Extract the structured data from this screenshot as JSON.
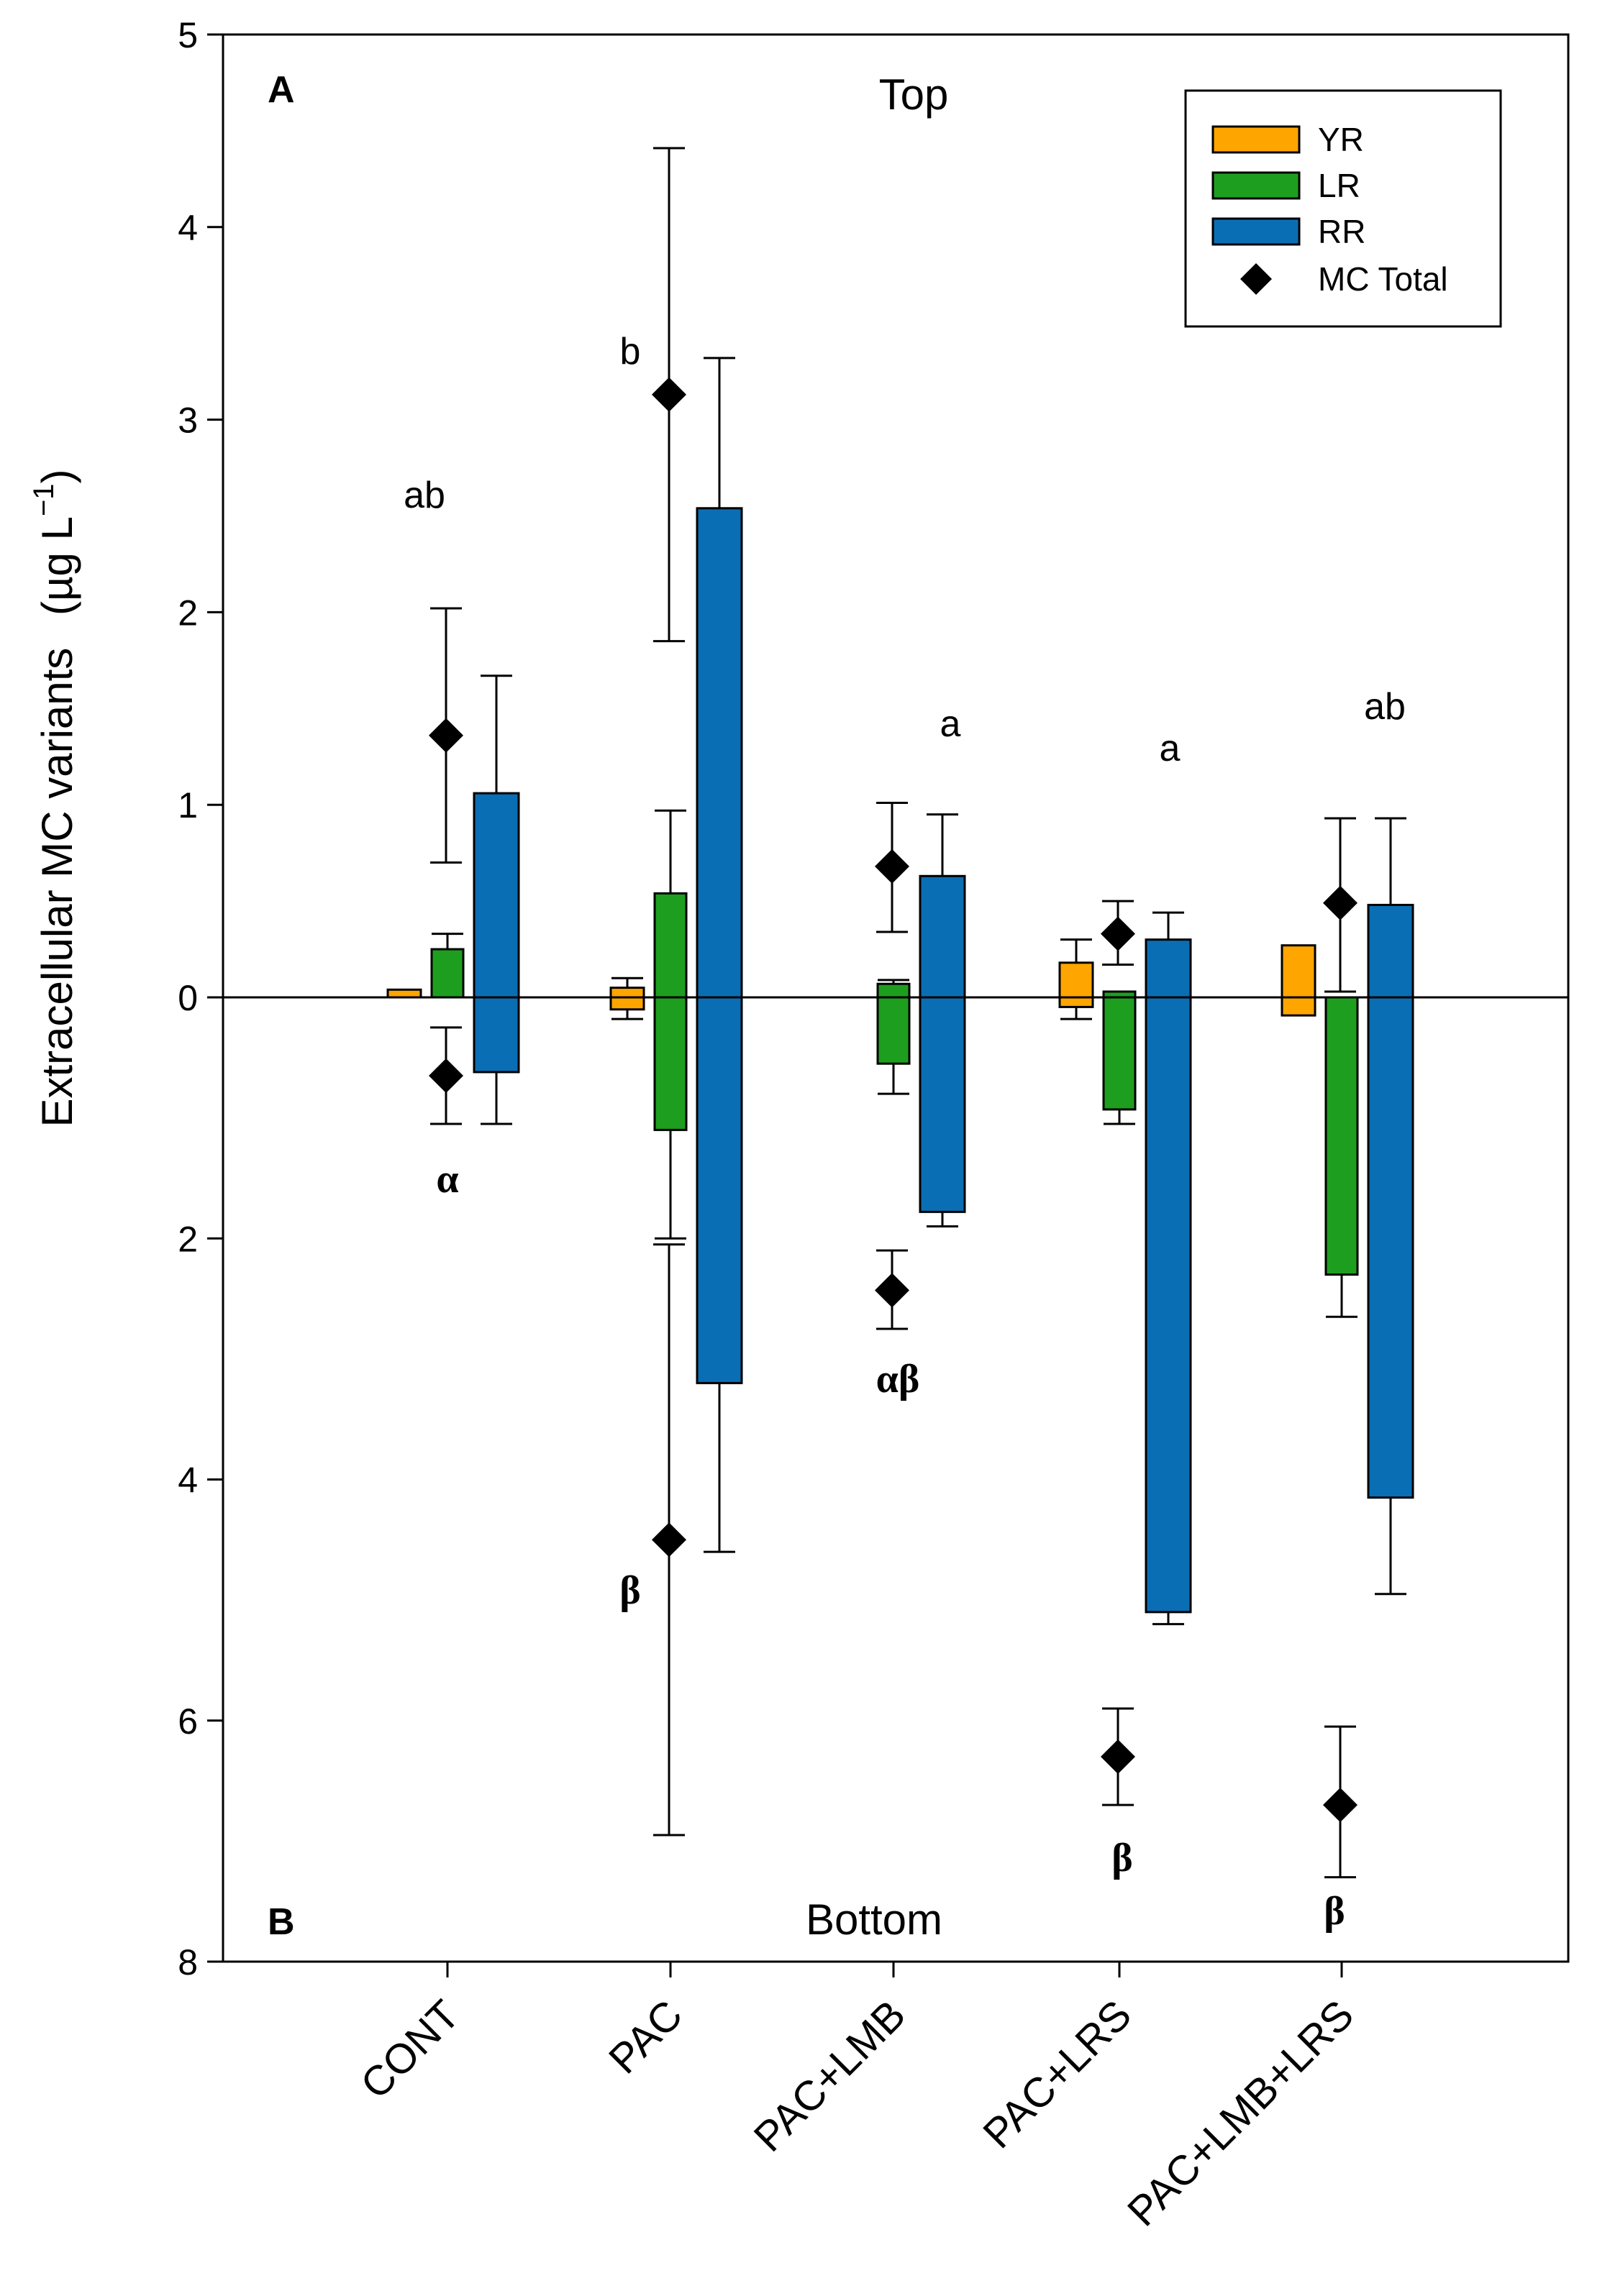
{
  "chart_data": {
    "type": "bar",
    "y_label": "Extracellular MC variants",
    "y_label_unit_prefix": "(µg L",
    "y_label_unit_exp": "−1",
    "y_label_unit_suffix": ")",
    "categories": [
      "CONT",
      "PAC",
      "PAC+LMB",
      "PAC+LRS",
      "PAC+LMB+LRS"
    ],
    "colors": {
      "YR": "#FFA500",
      "LR": "#1E9E1E",
      "RR": "#0A6EB4",
      "MC Total": "#000000"
    },
    "panels": [
      {
        "id": "A",
        "label": "A",
        "title": "Top",
        "ylim": [
          0,
          5
        ],
        "yticks": [
          0,
          1,
          2,
          3,
          4,
          5
        ],
        "tick_labels": [
          "0",
          "1",
          "2",
          "3",
          "4",
          "5"
        ],
        "series": [
          {
            "name": "YR",
            "values": [
              0.04,
              0.05,
              0.0,
              0.18,
              0.27
            ],
            "err_hi": [
              0.04,
              0.1,
              0.0,
              0.3,
              0.27
            ]
          },
          {
            "name": "LR",
            "values": [
              0.25,
              0.54,
              0.07,
              0.03,
              0.0
            ],
            "err_hi": [
              0.33,
              0.97,
              0.09,
              0.03,
              0.0
            ]
          },
          {
            "name": "RR",
            "values": [
              1.06,
              2.54,
              0.63,
              0.3,
              0.48
            ],
            "err_hi": [
              1.67,
              3.32,
              0.95,
              0.44,
              0.93
            ]
          }
        ],
        "total": {
          "name": "MC Total",
          "values": [
            1.36,
            3.13,
            0.68,
            0.33,
            0.49
          ],
          "err_lo": [
            0.7,
            1.85,
            0.34,
            0.17,
            0.03
          ],
          "err_hi": [
            2.02,
            4.41,
            1.01,
            0.5,
            0.93
          ]
        },
        "letters": [
          "ab",
          "b",
          "a",
          "a",
          "ab"
        ]
      },
      {
        "id": "B",
        "label": "B",
        "title": "Bottom",
        "ylim": [
          0,
          8
        ],
        "yticks": [
          2,
          4,
          6,
          8
        ],
        "tick_labels": [
          "2",
          "4",
          "6",
          "8"
        ],
        "series": [
          {
            "name": "YR",
            "values": [
              0.0,
              0.1,
              0.0,
              0.08,
              0.15
            ],
            "err_hi": [
              0.0,
              0.18,
              0.0,
              0.18,
              0.15
            ]
          },
          {
            "name": "LR",
            "values": [
              0.0,
              1.1,
              0.55,
              0.93,
              2.3
            ],
            "err_hi": [
              0.0,
              2.0,
              0.8,
              1.05,
              2.65
            ]
          },
          {
            "name": "RR",
            "values": [
              0.62,
              3.2,
              1.78,
              5.1,
              4.15
            ],
            "err_hi": [
              1.05,
              4.6,
              1.9,
              5.2,
              4.95
            ]
          }
        ],
        "total": {
          "name": "MC Total",
          "values": [
            0.65,
            4.5,
            2.43,
            6.3,
            6.7
          ],
          "err_lo": [
            0.25,
            2.05,
            2.1,
            5.9,
            6.05
          ],
          "err_hi": [
            1.05,
            6.95,
            2.75,
            6.7,
            7.3
          ]
        },
        "letters": [
          "α",
          "β",
          "αβ",
          "β",
          "β"
        ]
      }
    ],
    "legend": {
      "position": "top-right",
      "entries": [
        "YR",
        "LR",
        "RR",
        "MC Total"
      ]
    }
  }
}
